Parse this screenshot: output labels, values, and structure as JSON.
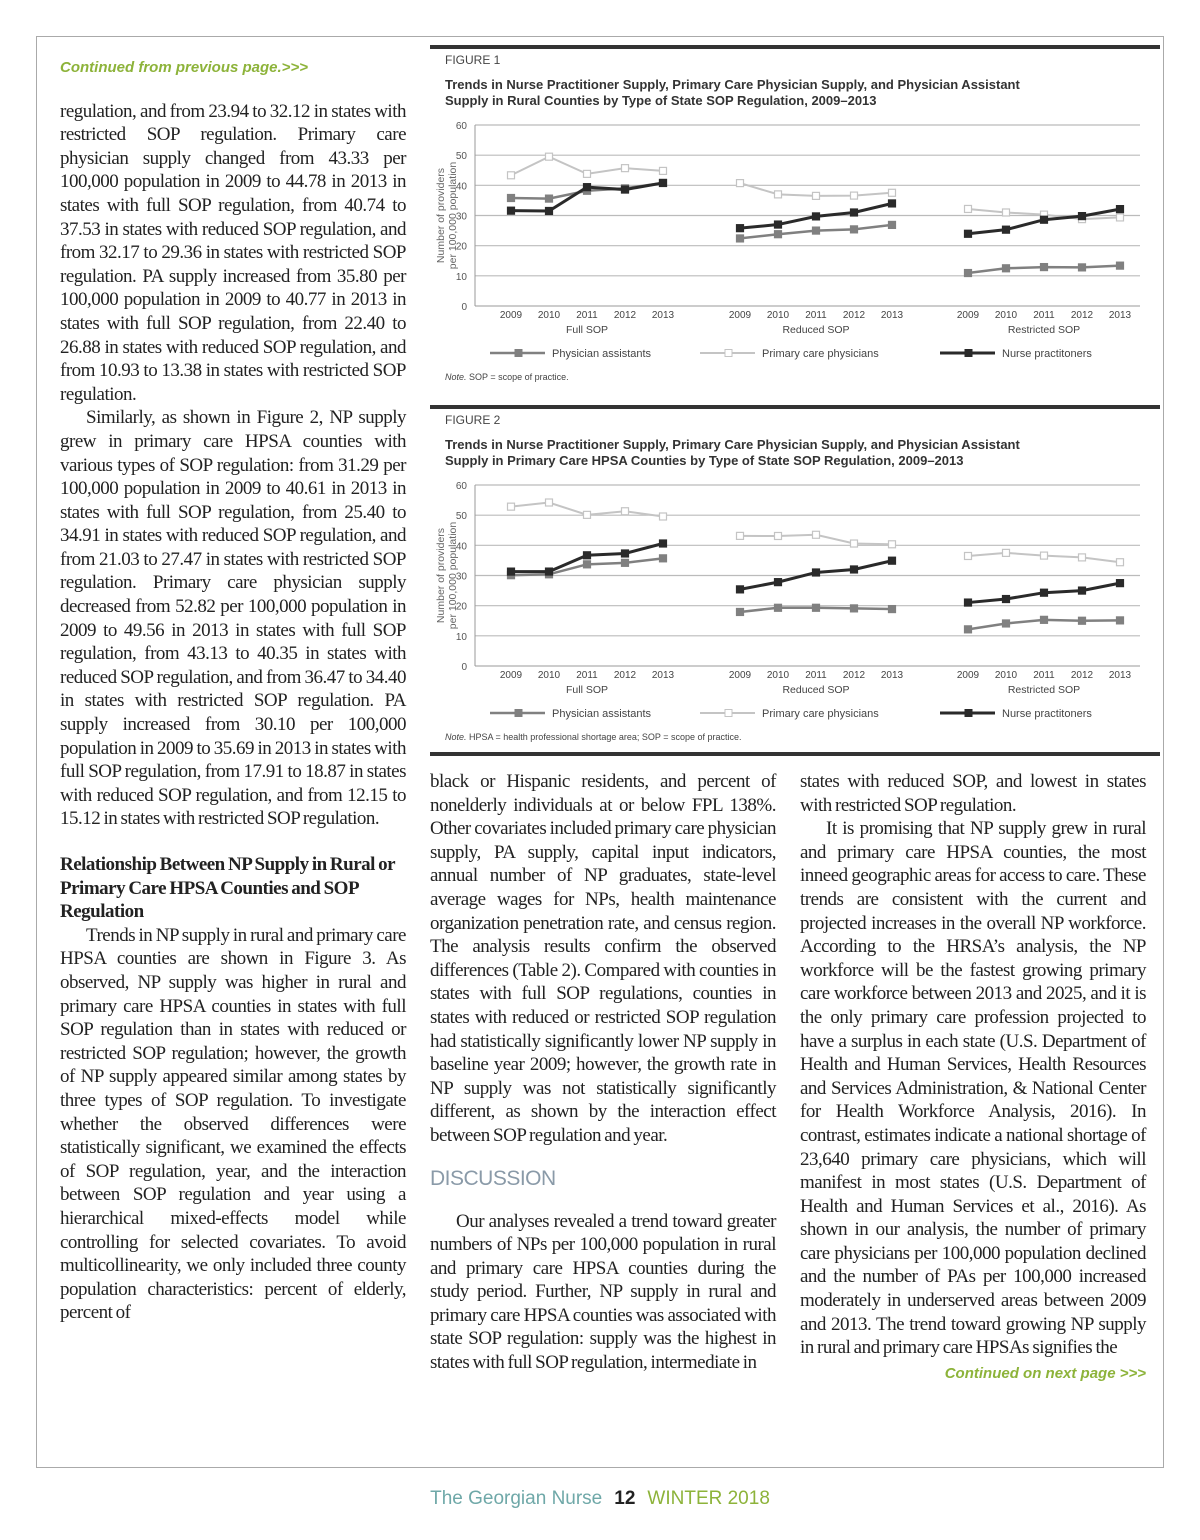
{
  "left_column": {
    "continued_from": "Continued from previous page.>>>",
    "p1": "regulation, and from 23.94 to 32.12 in states with restricted SOP regulation. Primary care physician supply changed from 43.33 per 100,000 population in 2009 to 44.78 in 2013 in states with full SOP regulation, from 40.74 to 37.53 in states with reduced SOP regulation, and from 32.17 to 29.36 in states with restricted SOP regulation. PA supply increased from 35.80 per 100,000 population in 2009 to 40.77 in 2013 in states with full SOP regulation, from 22.40 to 26.88 in states with reduced SOP regulation, and from 10.93 to 13.38 in states with restricted SOP regulation.",
    "p2": "Similarly, as shown in Figure 2, NP supply grew in primary care HPSA counties with various types of SOP regulation: from 31.29 per 100,000 population in 2009 to 40.61 in 2013 in states with full SOP regulation, from 25.40 to 34.91 in states with reduced SOP regulation, and from 21.03 to 27.47 in states with restricted SOP regulation. Primary care physician supply decreased from 52.82 per 100,000 population in 2009 to 49.56 in 2013 in states with full SOP regulation, from 43.13 to 40.35 in states with reduced SOP regulation, and from 36.47 to 34.40 in states with restricted SOP regulation. PA supply increased from 30.10 per 100,000 population in 2009 to 35.69 in 2013 in states with full SOP regulation, from 17.91 to 18.87 in states with reduced SOP regulation, and from 12.15 to 15.12 in states with restricted SOP regulation.",
    "heading": "Relationship Between NP Supply in Rural or Primary Care HPSA Counties and SOP Regulation",
    "p3": "Trends in NP supply in rural and primary care HPSA counties are shown in Figure 3. As observed, NP supply was higher in rural and primary care HPSA counties in states with full SOP regulation than in states with reduced or restricted SOP regulation; however, the growth of NP supply appeared similar among states by three types of SOP regulation. To investigate whether the observed differences were statistically significant, we examined the effects of SOP regulation, year, and the interaction between SOP regulation and year using a hierarchical mixed-effects model while controlling for selected covariates. To avoid multicollinearity, we only included three county population characteristics: percent of elderly, percent of"
  },
  "middle_column": {
    "p1": "black or Hispanic residents, and percent of nonelderly individuals at or below FPL 138%. Other covariates included primary care physician supply, PA supply, capital input indicators, annual number of NP graduates, state-level average wages for NPs, health maintenance organization penetration rate, and census region. The analysis results confirm the observed differences (Table 2). Compared with counties in states with full SOP regulations, counties in states with reduced or restricted SOP regulation had statistically significantly lower NP supply in baseline year 2009; however, the growth rate in NP supply was not statistically significantly different, as shown by the interaction effect between SOP regulation and year.",
    "heading": "DISCUSSION",
    "p2": "Our analyses revealed a trend toward greater numbers of NPs per 100,000 population in rural and primary care HPSA counties during the study period. Further, NP supply in rural and primary care HPSA counties was associated with state SOP regulation: supply was the highest in states with full SOP regulation, intermediate in"
  },
  "right_column": {
    "p1": "states with reduced SOP, and lowest in states with restricted SOP regulation.",
    "p2": "It is promising that NP supply grew in rural and primary care HPSA counties, the most inneed geographic areas for access to care. These trends are consistent with the current and projected increases in the overall NP workforce. According to the HRSA’s analysis, the NP workforce will be the fastest growing primary care workforce between 2013 and 2025, and it is the only primary care profession projected to have a surplus in each state (U.S. Department of Health and Human Services, Health Resources and Services Administration, & National Center for Health Workforce Analysis, 2016). In contrast, estimates indicate a national shortage of 23,640 primary care physicians, which will manifest in most states (U.S. Department of Health and Human Services et al., 2016). As shown in our analysis, the number of primary care physicians per 100,000 population declined and the number of PAs per 100,000 increased moderately in underserved areas between 2009 and 2013. The trend toward growing NP supply in rural and primary care HPSAs signifies the",
    "continued_on": "Continued on next page >>>"
  },
  "footer": {
    "magazine": "The Georgian Nurse",
    "page": "12",
    "issue": "WINTER 2018"
  },
  "colors": {
    "accent_green": "#8db33a",
    "accent_teal": "#6fa8a8",
    "pa": "#808080",
    "pcp": "#c4c4c4",
    "np": "#2a2a2a"
  },
  "chart_data": [
    {
      "type": "line",
      "label": "FIGURE 1",
      "title": "Trends in Nurse Practitioner Supply, Primary Care Physician Supply, and Physician Assistant Supply in Rural Counties by Type of State SOP Regulation, 2009–2013",
      "ylabel": "Number of providers per 100,000 population",
      "ylim": [
        0,
        60
      ],
      "yticks": [
        0,
        10,
        20,
        30,
        40,
        50,
        60
      ],
      "grid": true,
      "groups": [
        "Full SOP",
        "Reduced SOP",
        "Restricted SOP"
      ],
      "x": [
        "2009",
        "2010",
        "2011",
        "2012",
        "2013"
      ],
      "legend_position": "bottom",
      "series": [
        {
          "name": "Physician assistants",
          "values": [
            [
              35.8,
              35.6,
              38.2,
              39.0,
              40.77
            ],
            [
              22.4,
              23.8,
              25.0,
              25.4,
              26.88
            ],
            [
              10.93,
              12.5,
              12.9,
              12.8,
              13.38
            ]
          ]
        },
        {
          "name": "Primary care physicians",
          "values": [
            [
              43.33,
              49.5,
              43.8,
              45.7,
              44.78
            ],
            [
              40.74,
              37.0,
              36.5,
              36.6,
              37.53
            ],
            [
              32.17,
              31.0,
              30.3,
              28.8,
              29.36
            ]
          ]
        },
        {
          "name": "Nurse practitoners",
          "values": [
            [
              31.6,
              31.5,
              39.4,
              38.6,
              40.8
            ],
            [
              25.8,
              27.0,
              29.7,
              31.0,
              34.0
            ],
            [
              23.94,
              25.3,
              28.6,
              29.8,
              32.12
            ]
          ]
        }
      ],
      "note_label": "Note.",
      "note": "SOP = scope of practice."
    },
    {
      "type": "line",
      "label": "FIGURE 2",
      "title": "Trends in Nurse Practitioner Supply, Primary Care Physician Supply, and Physician Assistant Supply in Primary Care HPSA Counties by Type of State SOP Regulation, 2009–2013",
      "ylabel": "Number of providers per 100,000 population",
      "ylim": [
        0,
        60
      ],
      "yticks": [
        0,
        10,
        20,
        30,
        40,
        50,
        60
      ],
      "grid": true,
      "groups": [
        "Full SOP",
        "Reduced SOP",
        "Restricted SOP"
      ],
      "x": [
        "2009",
        "2010",
        "2011",
        "2012",
        "2013"
      ],
      "legend_position": "bottom",
      "series": [
        {
          "name": "Physician assistants",
          "values": [
            [
              30.1,
              30.4,
              33.7,
              34.2,
              35.69
            ],
            [
              17.91,
              19.3,
              19.3,
              19.1,
              18.87
            ],
            [
              12.15,
              14.1,
              15.3,
              15.0,
              15.12
            ]
          ]
        },
        {
          "name": "Primary care physicians",
          "values": [
            [
              52.82,
              54.2,
              50.1,
              51.3,
              49.56
            ],
            [
              43.13,
              43.1,
              43.5,
              40.6,
              40.35
            ],
            [
              36.47,
              37.5,
              36.6,
              36.0,
              34.4
            ]
          ]
        },
        {
          "name": "Nurse practitoners",
          "values": [
            [
              31.29,
              31.3,
              36.7,
              37.3,
              40.61
            ],
            [
              25.4,
              27.8,
              31.0,
              32.0,
              34.91
            ],
            [
              21.03,
              22.2,
              24.3,
              25.0,
              27.47
            ]
          ]
        }
      ],
      "note_label": "Note.",
      "note": "HPSA = health professional shortage area; SOP = scope of practice."
    }
  ]
}
